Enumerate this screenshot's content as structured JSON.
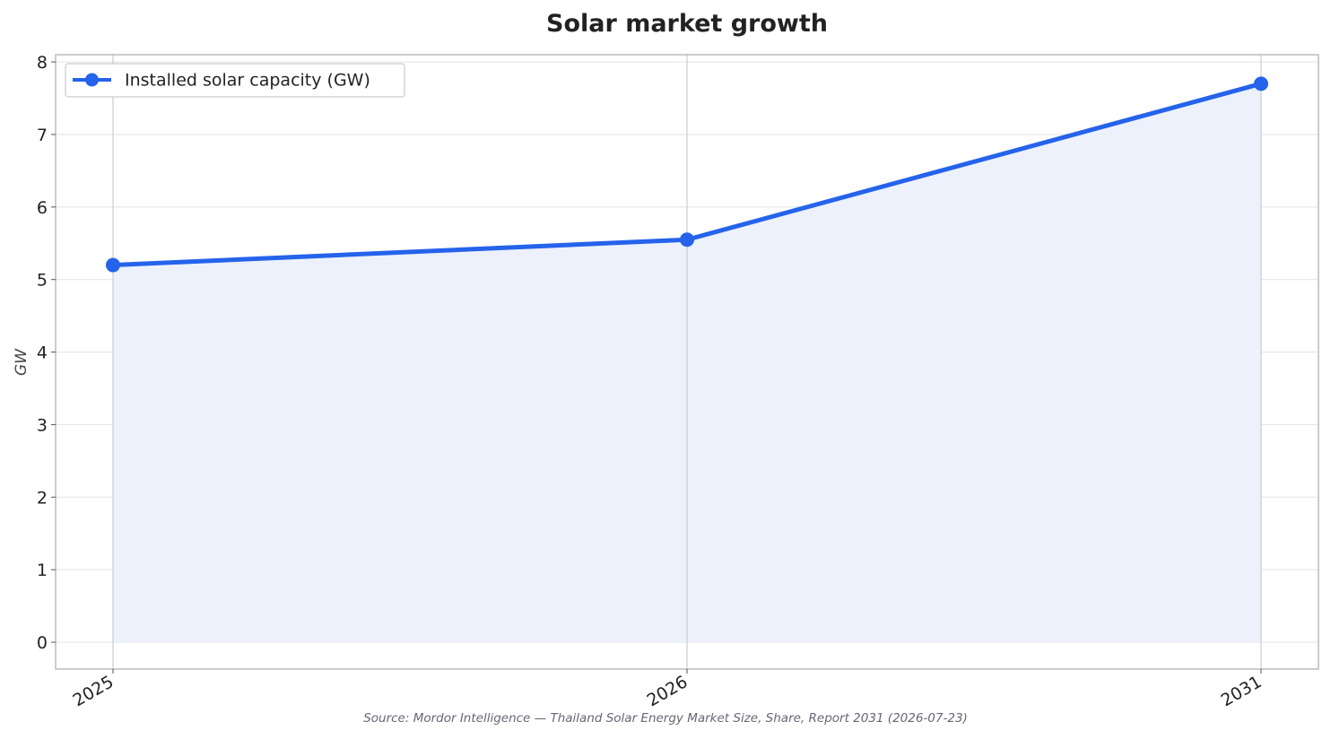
{
  "chart_data": {
    "type": "line",
    "title": "Solar market growth",
    "xlabel": "",
    "ylabel": "GW",
    "x": [
      "2025",
      "2026",
      "2031"
    ],
    "series": [
      {
        "name": "Installed solar capacity (GW)",
        "values": [
          5.2,
          5.55,
          7.7
        ]
      }
    ],
    "ylim": [
      -0.37,
      8.1
    ],
    "yticks": [
      0,
      1,
      2,
      3,
      4,
      5,
      6,
      7,
      8
    ],
    "area_fill": true,
    "grid": true,
    "legend_position": "top-left",
    "source": "Source: Mordor Intelligence — Thailand Solar Energy Market Size, Share, Report 2031 (2026-07-23)"
  },
  "colors": {
    "line": "#2563eb",
    "fill": "#ecf1fc",
    "grid": "#e6e6ea",
    "vgrid": "#c8ccd6",
    "axes": "#bbbbbb"
  }
}
